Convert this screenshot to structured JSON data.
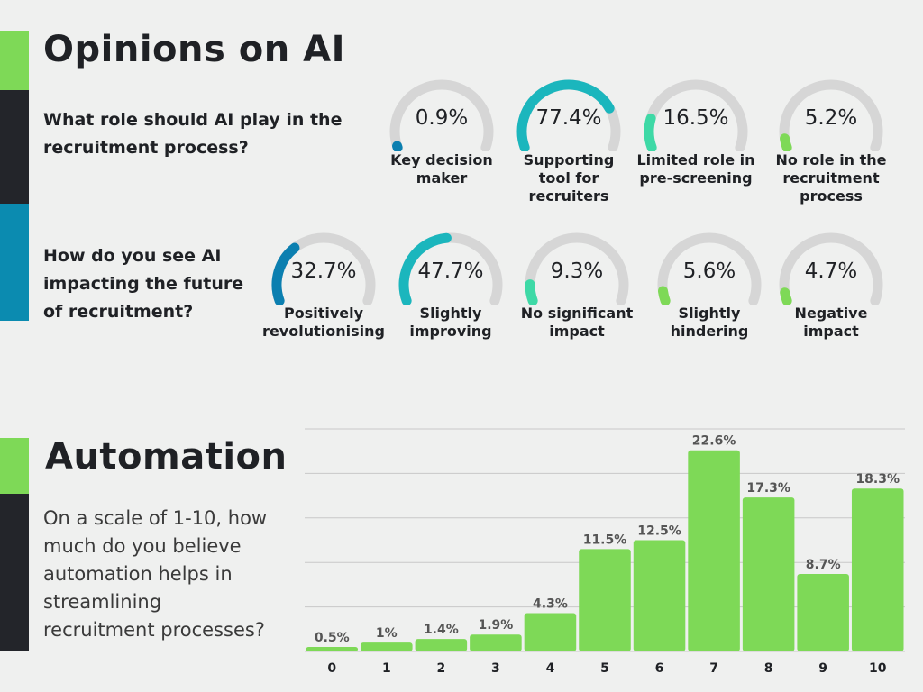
{
  "colors": {
    "green": "#7ed957",
    "dark": "#23252a",
    "blue": "#0b8bb0",
    "teal": "#1bb6bd",
    "mint": "#3ed9a6",
    "gauge_track": "#d6d6d6",
    "gridline": "#c8c8c8"
  },
  "opinions": {
    "title": "Opinions on AI",
    "q1": {
      "question": "What role should AI play in the recruitment process?",
      "items": [
        {
          "value": "0.9%",
          "pct": 0.9,
          "label": "Key decision maker",
          "color": "#0b7fb0"
        },
        {
          "value": "77.4%",
          "pct": 77.4,
          "label": "Supporting tool for recruiters",
          "color": "#1bb6bd"
        },
        {
          "value": "16.5%",
          "pct": 16.5,
          "label": "Limited role in pre-screening",
          "color": "#3ed9a6"
        },
        {
          "value": "5.2%",
          "pct": 5.2,
          "label": "No role in the recruitment process",
          "color": "#7ed957"
        }
      ]
    },
    "q2": {
      "question": "How do you see AI impacting the future of recruitment?",
      "items": [
        {
          "value": "32.7%",
          "pct": 32.7,
          "label": "Positively revolutionising",
          "color": "#0b7fb0"
        },
        {
          "value": "47.7%",
          "pct": 47.7,
          "label": "Slightly improving",
          "color": "#1bb6bd"
        },
        {
          "value": "9.3%",
          "pct": 9.3,
          "label": "No significant impact",
          "color": "#3ed9a6"
        },
        {
          "value": "5.6%",
          "pct": 5.6,
          "label": "Slightly hindering",
          "color": "#7ed957"
        },
        {
          "value": "4.7%",
          "pct": 4.7,
          "label": "Negative impact",
          "color": "#7ed957"
        }
      ]
    }
  },
  "automation": {
    "title": "Automation",
    "question": "On a scale of 1-10, how much do you believe automation helps in streamlining recruitment processes?"
  },
  "chart_data": [
    {
      "type": "bar",
      "title": "On a scale of 1-10, how much do you believe automation helps in streamlining recruitment processes?",
      "categories": [
        "0",
        "1",
        "2",
        "3",
        "4",
        "5",
        "6",
        "7",
        "8",
        "9",
        "10"
      ],
      "values": [
        0.5,
        1,
        1.4,
        1.9,
        4.3,
        11.5,
        12.5,
        22.6,
        17.3,
        8.7,
        18.3
      ],
      "data_labels": [
        "0.5%",
        "1%",
        "1.4%",
        "1.9%",
        "4.3%",
        "11.5%",
        "12.5%",
        "22.6%",
        "17.3%",
        "8.7%",
        "18.3%"
      ],
      "xlabel": "",
      "ylabel": "",
      "ylim": [
        0,
        25
      ],
      "grid": true,
      "color": "#7ed957"
    }
  ]
}
